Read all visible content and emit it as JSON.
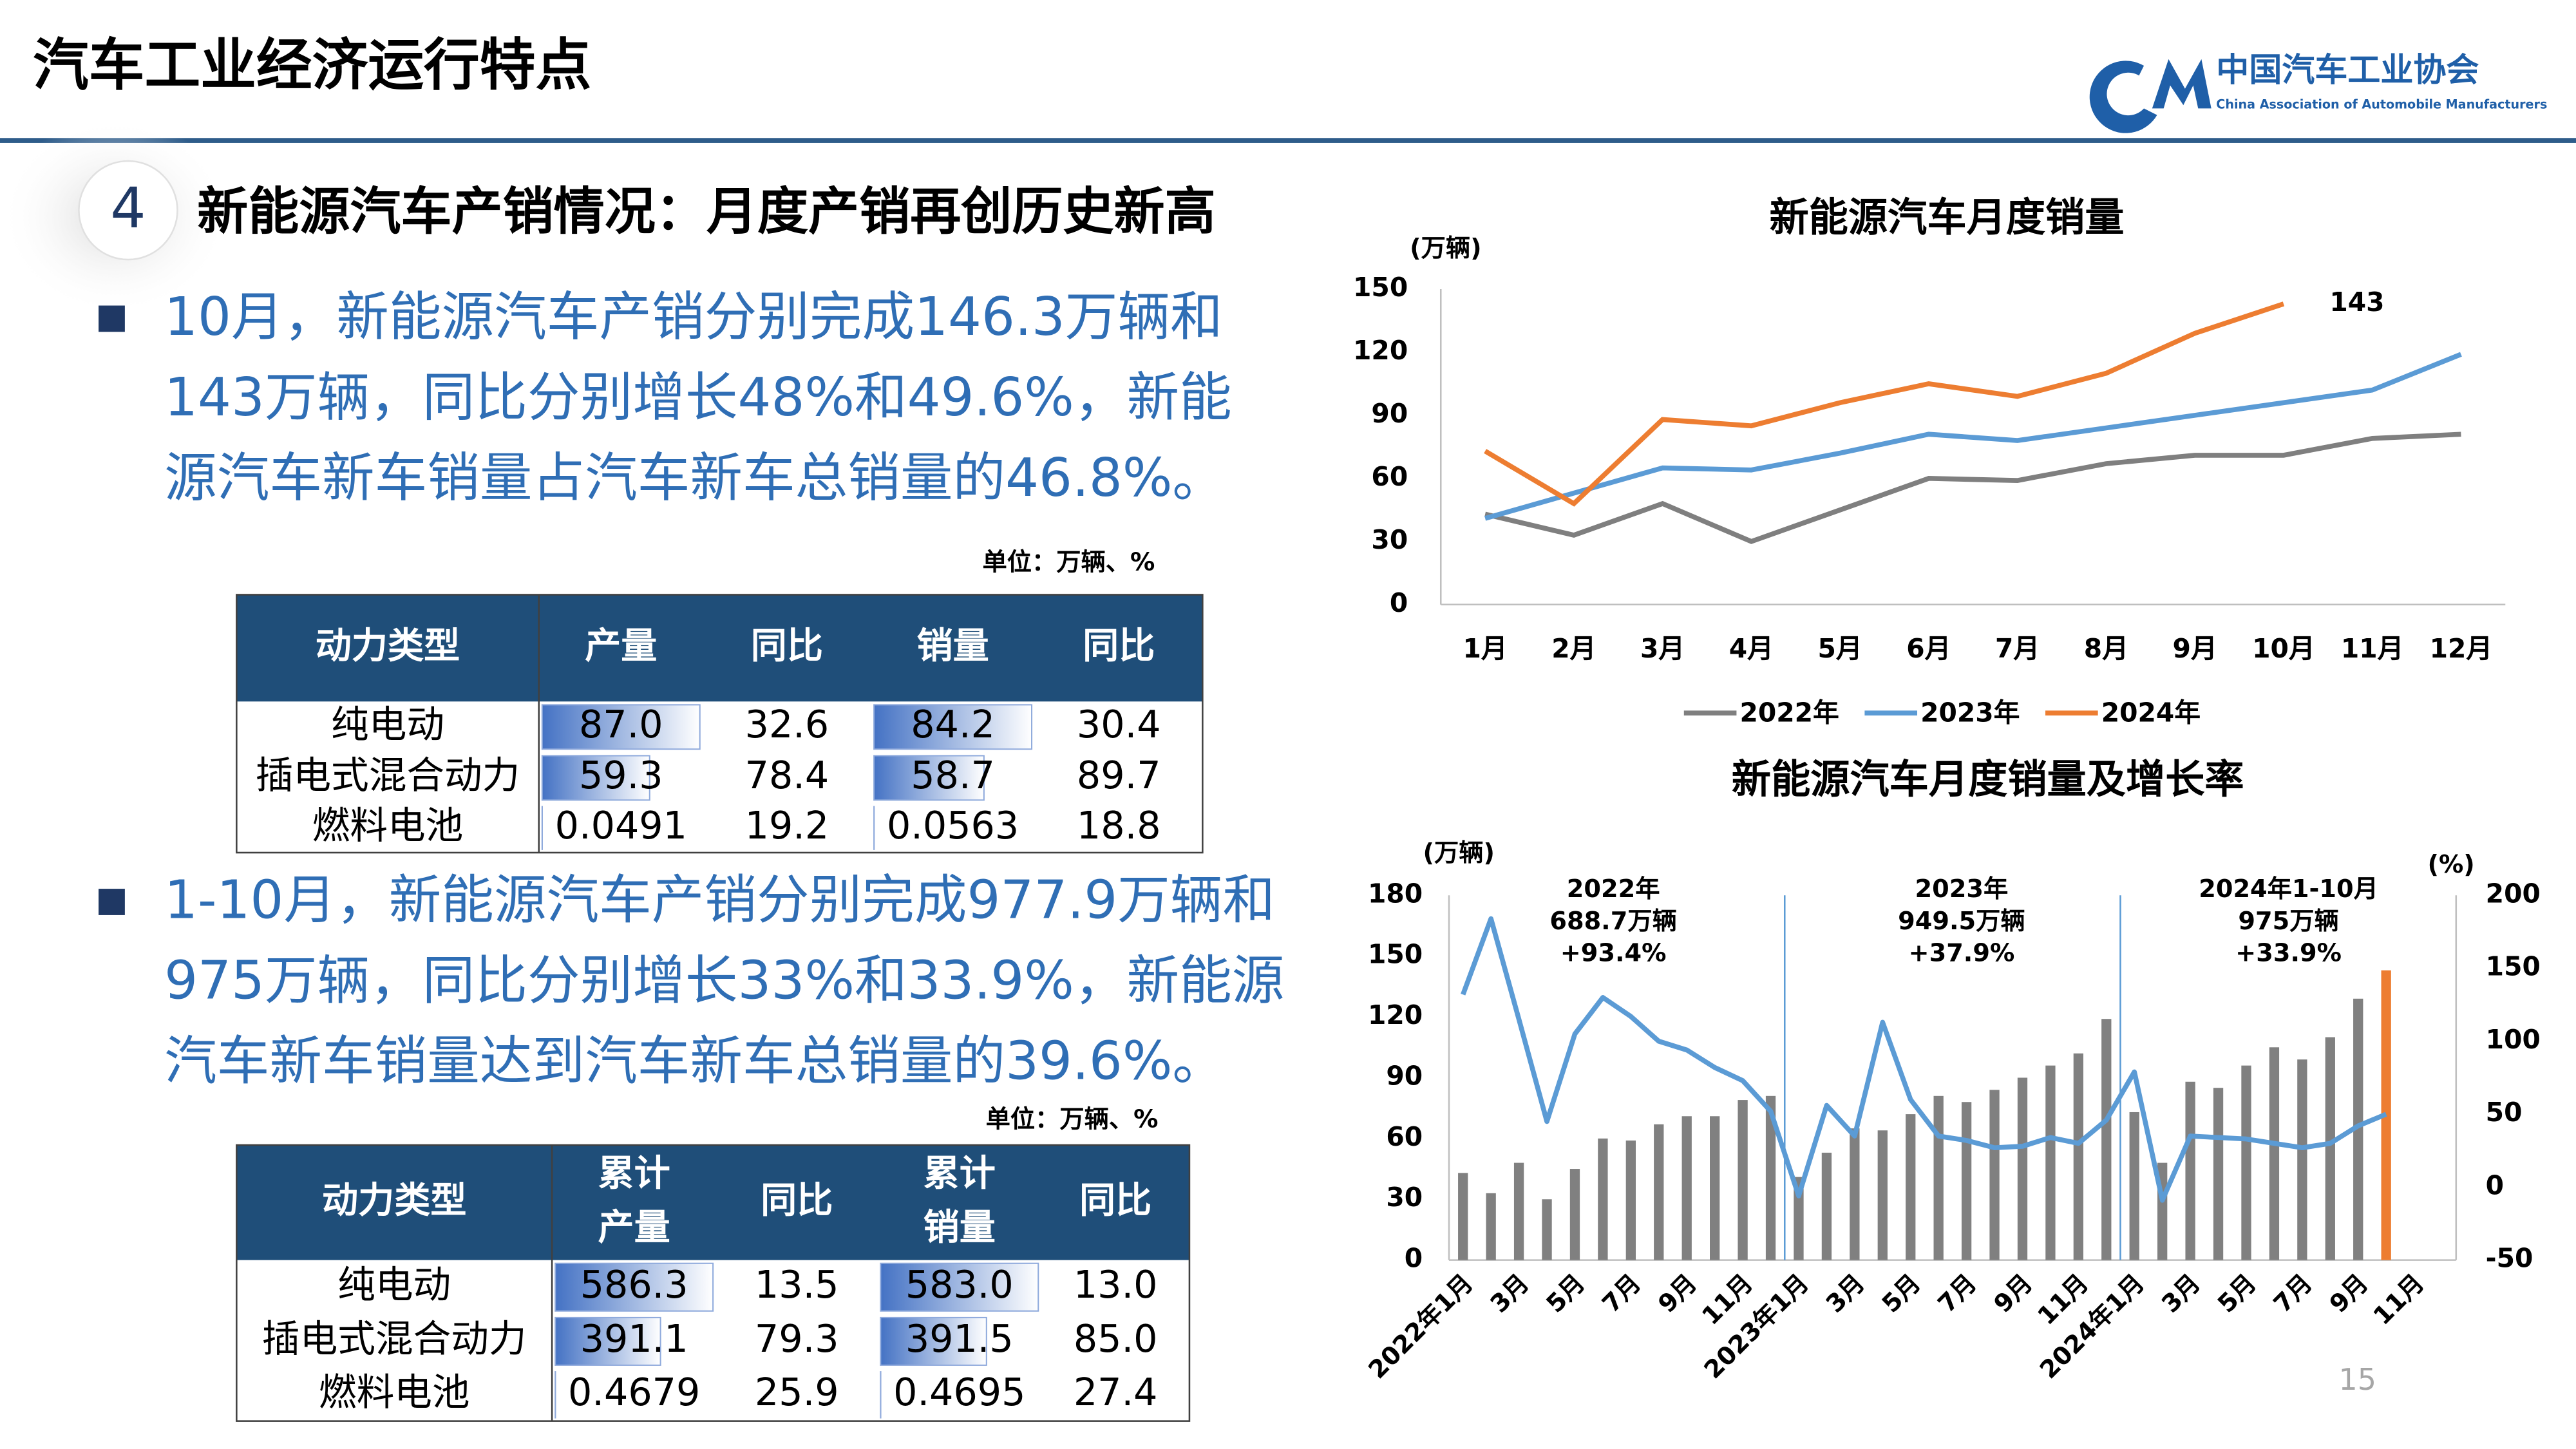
{
  "header": {
    "title": "汽车工业经济运行特点",
    "org": "中国汽车工业协会",
    "org_en": "China Association of Automobile Manufacturers"
  },
  "section": {
    "number": "4",
    "title": "新能源汽车产销情况：月度产销再创历史新高"
  },
  "bullets": [
    {
      "lines": [
        "10月，新能源汽车产销分别完成146.3万辆和",
        "143万辆，同比分别增长48%和49.6%，新能",
        "源汽车新车销量占汽车新车总销量的46.8%。"
      ]
    },
    {
      "lines": [
        "1-10月，新能源汽车产销分别完成977.9万辆和",
        "975万辆，同比分别增长33%和33.9%，新能源",
        "汽车新车销量达到汽车新车总销量的39.6%。"
      ]
    }
  ],
  "tables": [
    {
      "unit": "单位：万辆、%",
      "databar_columns": [
        1,
        3
      ],
      "headers": [
        [
          "动力类型"
        ],
        [
          "产量"
        ],
        [
          "同比"
        ],
        [
          "销量"
        ],
        [
          "同比"
        ]
      ],
      "rows": [
        [
          "纯电动",
          "87.0",
          "32.6",
          "84.2",
          "30.4"
        ],
        [
          "插电式混合动力",
          "59.3",
          "78.4",
          "58.7",
          "89.7"
        ],
        [
          "燃料电池",
          "0.0491",
          "19.2",
          "0.0563",
          "18.8"
        ]
      ]
    },
    {
      "unit": "单位：万辆、%",
      "databar_columns": [
        1,
        3
      ],
      "headers": [
        [
          "动力类型"
        ],
        [
          "累计",
          "产量"
        ],
        [
          "同比"
        ],
        [
          "累计",
          "销量"
        ],
        [
          "同比"
        ]
      ],
      "rows": [
        [
          "纯电动",
          "586.3",
          "13.5",
          "583.0",
          "13.0"
        ],
        [
          "插电式混合动力",
          "391.1",
          "79.3",
          "391.5",
          "85.0"
        ],
        [
          "燃料电池",
          "0.4679",
          "25.9",
          "0.4695",
          "27.4"
        ]
      ]
    }
  ],
  "page_number": "15",
  "chart_data": [
    {
      "type": "line",
      "title": "新能源汽车月度销量",
      "y_label": "(万辆)",
      "categories": [
        "1月",
        "2月",
        "3月",
        "4月",
        "5月",
        "6月",
        "7月",
        "8月",
        "9月",
        "10月",
        "11月",
        "12月"
      ],
      "series": [
        {
          "name": "2022年",
          "color": "#7f7f7f",
          "values": [
            43,
            33,
            48,
            30,
            45,
            60,
            59,
            67,
            71,
            71,
            79,
            81
          ]
        },
        {
          "name": "2023年",
          "color": "#5b9bd5",
          "values": [
            41,
            53,
            65,
            64,
            72,
            81,
            78,
            84,
            90,
            96,
            102,
            119
          ]
        },
        {
          "name": "2024年",
          "color": "#ed7d31",
          "values": [
            73,
            48,
            88,
            85,
            96,
            105,
            99,
            110,
            129,
            143,
            null,
            null
          ],
          "value_labels": [
            null,
            null,
            null,
            null,
            null,
            null,
            null,
            null,
            null,
            "143",
            null,
            null
          ]
        }
      ],
      "ylim": [
        0,
        150
      ],
      "yticks": [
        0,
        30,
        60,
        90,
        120,
        150
      ],
      "grid": false,
      "legend": "bottom"
    },
    {
      "type": "bar_line",
      "title": "新能源汽车月度销量及增长率",
      "y_label": "(万辆)",
      "y2_label": "(%)",
      "categories": [
        "2022年1月",
        null,
        "3月",
        null,
        "5月",
        null,
        "7月",
        null,
        "9月",
        null,
        "11月",
        null,
        "2023年1月",
        null,
        "3月",
        null,
        "5月",
        null,
        "7月",
        null,
        "9月",
        null,
        "11月",
        null,
        "2024年1月",
        null,
        "3月",
        null,
        "5月",
        null,
        "7月",
        null,
        "9月",
        null,
        "11月",
        null
      ],
      "series": [
        {
          "kind": "bar",
          "color": "#808080",
          "highlight": {
            "index": 33,
            "color": "#ed7d31"
          },
          "values": [
            43,
            33,
            48,
            30,
            45,
            60,
            59,
            67,
            71,
            71,
            79,
            81,
            41,
            53,
            65,
            64,
            72,
            81,
            78,
            84,
            90,
            96,
            102,
            119,
            73,
            48,
            88,
            85,
            96,
            105,
            99,
            110,
            129,
            143,
            null,
            null
          ]
        },
        {
          "kind": "line",
          "axis": "y2",
          "color": "#5b9bd5",
          "values": [
            132,
            184,
            115,
            45,
            105,
            130,
            117,
            100,
            94,
            82,
            73,
            52,
            -6,
            56,
            35,
            113,
            60,
            35,
            32,
            27,
            28,
            34,
            30,
            46,
            79,
            -9,
            35,
            34,
            33,
            30,
            27,
            30,
            42,
            50,
            null,
            null
          ]
        }
      ],
      "annotations": [
        {
          "lines": [
            "2022年",
            "688.7万辆",
            "+93.4%"
          ]
        },
        {
          "lines": [
            "2023年",
            "949.5万辆",
            "+37.9%"
          ]
        },
        {
          "lines": [
            "2024年1-10月",
            "975万辆",
            "+33.9%"
          ]
        }
      ],
      "ylim": [
        0,
        180
      ],
      "yticks": [
        0,
        30,
        60,
        90,
        120,
        150,
        180
      ],
      "y2lim": [
        -50,
        200
      ],
      "y2ticks": [
        -50,
        0,
        50,
        100,
        150,
        200
      ],
      "grid": false
    }
  ]
}
